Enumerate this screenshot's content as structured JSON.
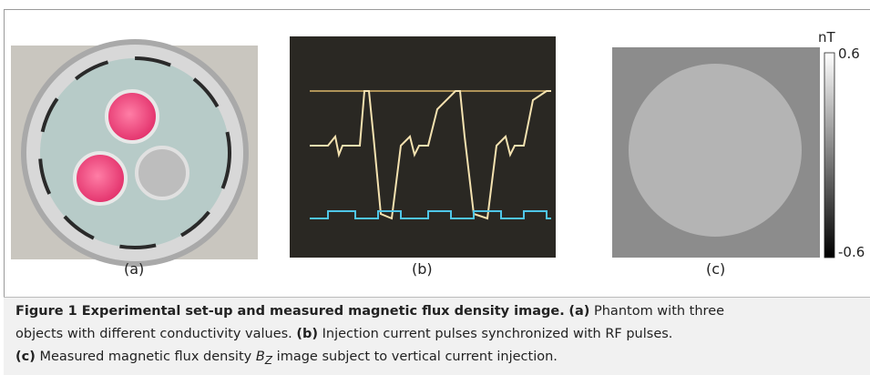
{
  "panels": [
    {
      "label": "(a)"
    },
    {
      "label": "(b)"
    },
    {
      "label": "(c)"
    }
  ],
  "colorbar": {
    "unit": "nT",
    "max_label": "0.6",
    "min_label": "-0.6"
  },
  "caption": {
    "title": "Figure 1 Experimental set-up and measured magnetic flux density image.",
    "items": [
      {
        "tag": "(a)",
        "text_line1": "Phantom with three",
        "text_line2": "objects with different conductivity values."
      },
      {
        "tag": "(b)",
        "text": "Injection current pulses synchronized with RF pulses."
      },
      {
        "tag": "(c)",
        "text_before": "Measured magnetic flux density",
        "symbol": "B",
        "symbol_subscript": "Z",
        "text_after": "image subject to vertical current injection."
      }
    ]
  }
}
